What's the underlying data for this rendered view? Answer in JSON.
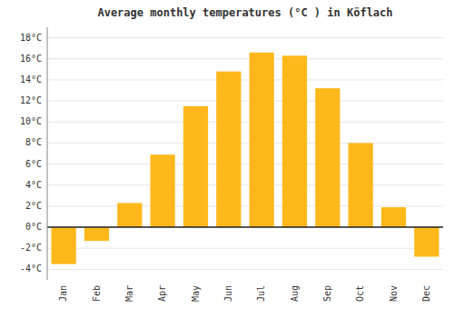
{
  "chart_data": {
    "type": "bar",
    "title": "Average monthly temperatures (°C ) in Köflach",
    "categories": [
      "Jan",
      "Feb",
      "Mar",
      "Apr",
      "May",
      "Jun",
      "Jul",
      "Aug",
      "Sep",
      "Oct",
      "Nov",
      "Dec"
    ],
    "values": [
      -3.5,
      -1.3,
      2.3,
      6.9,
      11.5,
      14.8,
      16.6,
      16.3,
      13.2,
      8.0,
      1.9,
      -2.8
    ],
    "color": "#FFB81C",
    "ylim": [
      -5,
      19
    ],
    "yticks": [
      {
        "value": -4,
        "label": "-4°C"
      },
      {
        "value": -2,
        "label": "-2°C"
      },
      {
        "value": 0,
        "label": "0°C"
      },
      {
        "value": 2,
        "label": "2°C"
      },
      {
        "value": 4,
        "label": "4°C"
      },
      {
        "value": 6,
        "label": "6°C"
      },
      {
        "value": 8,
        "label": "8°C"
      },
      {
        "value": 10,
        "label": "10°C"
      },
      {
        "value": 12,
        "label": "12°C"
      },
      {
        "value": 14,
        "label": "14°C"
      },
      {
        "value": 16,
        "label": "16°C"
      },
      {
        "value": 18,
        "label": "18°C"
      }
    ],
    "grid": true
  }
}
